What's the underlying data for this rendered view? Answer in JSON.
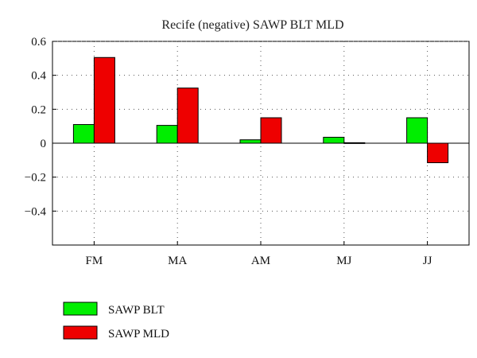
{
  "chart_data": {
    "type": "bar",
    "title": "Recife (negative) SAWP BLT MLD",
    "xlabel": "",
    "ylabel": "",
    "categories": [
      "FM",
      "MA",
      "AM",
      "MJ",
      "JJ"
    ],
    "series": [
      {
        "name": "SAWP BLT",
        "color": "#00ee00",
        "values": [
          0.11,
          0.105,
          0.02,
          0.035,
          0.15
        ]
      },
      {
        "name": "SAWP MLD",
        "color": "#ee0000",
        "values": [
          0.505,
          0.325,
          0.15,
          0.003,
          -0.115
        ]
      }
    ],
    "ylim": [
      -0.6,
      0.6
    ],
    "yticks": [
      0.6,
      0.4,
      0.2,
      0,
      -0.2,
      -0.4
    ],
    "ytick_labels": [
      "0.6",
      "0.4",
      "0.2",
      "0",
      "−0.2",
      "−0.4"
    ],
    "grid": true,
    "legend_position": "bottom-left"
  }
}
